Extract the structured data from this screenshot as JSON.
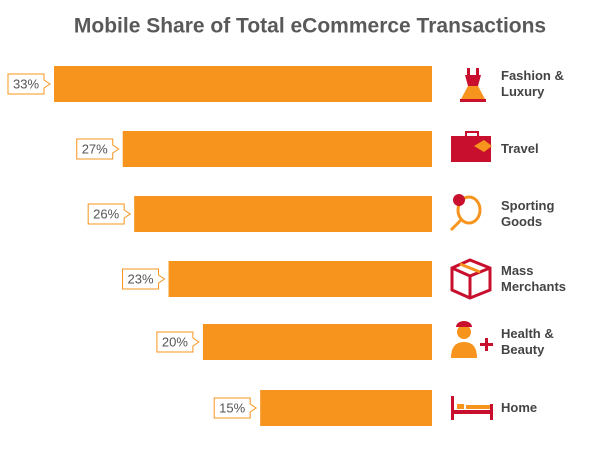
{
  "chart_data": {
    "type": "barh",
    "title": "Mobile Share of Total eCommerce Transactions",
    "categories": [
      "Fashion & Luxury",
      "Travel",
      "Sporting Goods",
      "Mass Merchants",
      "Health & Beauty",
      "Home"
    ],
    "values": [
      33,
      27,
      26,
      23,
      20,
      15
    ],
    "value_labels": [
      "33%",
      "27%",
      "26%",
      "23%",
      "20%",
      "15%"
    ],
    "color": "#f7941d"
  }
}
